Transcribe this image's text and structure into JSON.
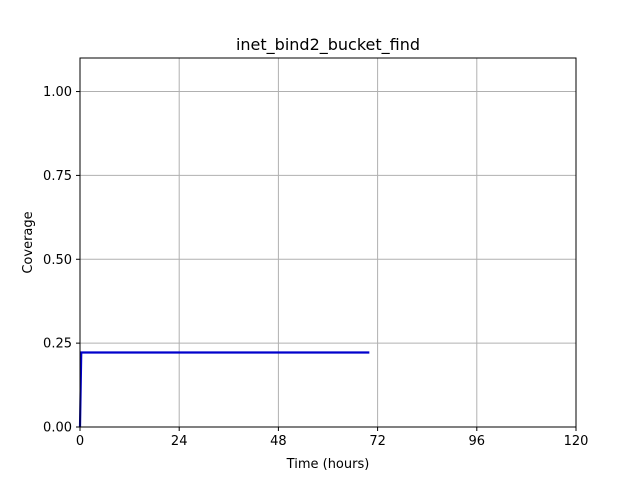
{
  "chart_data": {
    "type": "line",
    "title": "inet_bind2_bucket_find",
    "xlabel": "Time (hours)",
    "ylabel": "Coverage",
    "xlim": [
      0,
      120
    ],
    "ylim": [
      0,
      1.1
    ],
    "xticks": [
      0,
      24,
      48,
      72,
      96,
      120
    ],
    "xtick_labels": [
      "0",
      "24",
      "48",
      "72",
      "96",
      "120"
    ],
    "yticks": [
      0,
      0.25,
      0.5,
      0.75,
      1.0
    ],
    "ytick_labels": [
      "0.00",
      "0.25",
      "0.50",
      "0.75",
      "1.00"
    ],
    "grid": true,
    "series": [
      {
        "name": "coverage",
        "color": "#0000cc",
        "x": [
          0,
          0.3,
          70
        ],
        "y": [
          0,
          0.222,
          0.222
        ]
      }
    ]
  }
}
